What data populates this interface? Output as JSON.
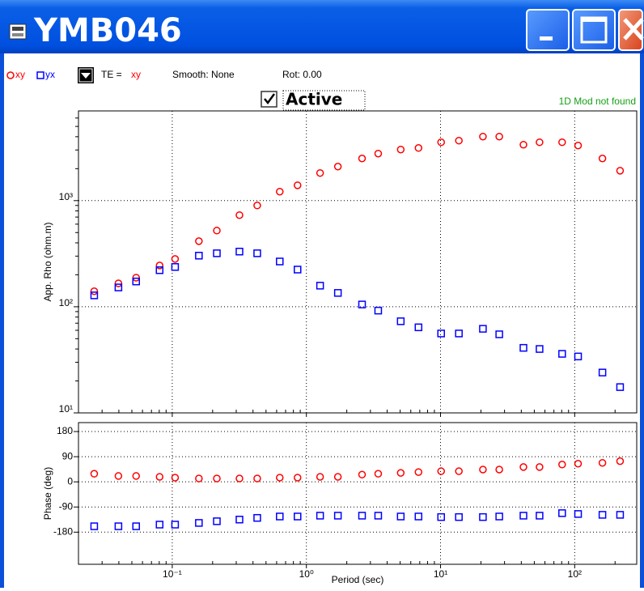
{
  "window": {
    "title": "YMB046"
  },
  "toolbar": {
    "te_label": "TE =",
    "te_value": "xy",
    "smooth": "Smooth: None",
    "rot": "Rot: 0.00",
    "active": "Active",
    "status": "1D Mod not found"
  },
  "chart_data": [
    {
      "type": "scatter",
      "ylabel": "App. Rho (ohm.m)",
      "xlog": true,
      "ylog": true,
      "grid": true,
      "xlim": [
        0.02,
        290
      ],
      "ylim": [
        10,
        7000
      ],
      "xticks": [
        0.1,
        1,
        10,
        100
      ],
      "yticks": [
        {
          "value": 10,
          "label": "10¹"
        },
        {
          "value": 100,
          "label": "10²"
        },
        {
          "value": 1000,
          "label": "10³"
        }
      ],
      "x": [
        0.0262,
        0.0397,
        0.0538,
        0.0805,
        0.105,
        0.158,
        0.215,
        0.317,
        0.43,
        0.633,
        0.859,
        1.265,
        1.717,
        2.6,
        3.43,
        5.05,
        6.85,
        10.1,
        13.7,
        20.7,
        27.4,
        41.5,
        54.7,
        80.6,
        106,
        161,
        218
      ],
      "series": [
        {
          "name": "xy",
          "color": "#ff0000",
          "marker": "circle",
          "values": [
            140,
            166,
            188,
            245,
            282,
            415,
            522,
            730,
            900,
            1215,
            1395,
            1820,
            2093,
            2495,
            2773,
            3027,
            3133,
            3548,
            3675,
            4010,
            4010,
            3365,
            3548,
            3548,
            3304,
            2495,
            1914
          ]
        },
        {
          "name": "yx",
          "color": "#0000ff",
          "marker": "square",
          "values": [
            128,
            152,
            173,
            221,
            237,
            303,
            319,
            331,
            319,
            267,
            224,
            158,
            135,
            105,
            92,
            73,
            64,
            56,
            56,
            62,
            55,
            41,
            40,
            36,
            34,
            24,
            17.5
          ]
        }
      ]
    },
    {
      "type": "scatter",
      "xlabel": "Period (sec)",
      "ylabel": "Phase (deg)",
      "xlog": true,
      "ylog": false,
      "grid": true,
      "xlim": [
        0.02,
        290
      ],
      "ylim": [
        -295,
        212
      ],
      "xticks": [
        {
          "value": 0.1,
          "label": "10⁻¹"
        },
        {
          "value": 1,
          "label": "10⁰"
        },
        {
          "value": 10,
          "label": "10¹"
        },
        {
          "value": 100,
          "label": "10²"
        }
      ],
      "yticks": [
        180,
        90,
        0,
        -90,
        -180
      ],
      "x": [
        0.0262,
        0.0397,
        0.0538,
        0.0805,
        0.105,
        0.158,
        0.215,
        0.317,
        0.43,
        0.633,
        0.859,
        1.265,
        1.717,
        2.6,
        3.43,
        5.05,
        6.85,
        10.1,
        13.7,
        20.7,
        27.4,
        41.5,
        54.7,
        80.6,
        106,
        161,
        218
      ],
      "series": [
        {
          "color": "#ff0000",
          "marker": "circle",
          "values": [
            29,
            21,
            21,
            18,
            15,
            12,
            12,
            12,
            12,
            15,
            15,
            18,
            18,
            26,
            29,
            32,
            35,
            38,
            38,
            44,
            44,
            53,
            53,
            62,
            65,
            68,
            74
          ]
        },
        {
          "color": "#0000ff",
          "marker": "square",
          "values": [
            -159,
            -159,
            -159,
            -153,
            -153,
            -147,
            -141,
            -135,
            -129,
            -124,
            -124,
            -121,
            -121,
            -121,
            -121,
            -124,
            -124,
            -126,
            -126,
            -126,
            -124,
            -121,
            -121,
            -112,
            -115,
            -118,
            -118
          ]
        }
      ]
    }
  ]
}
